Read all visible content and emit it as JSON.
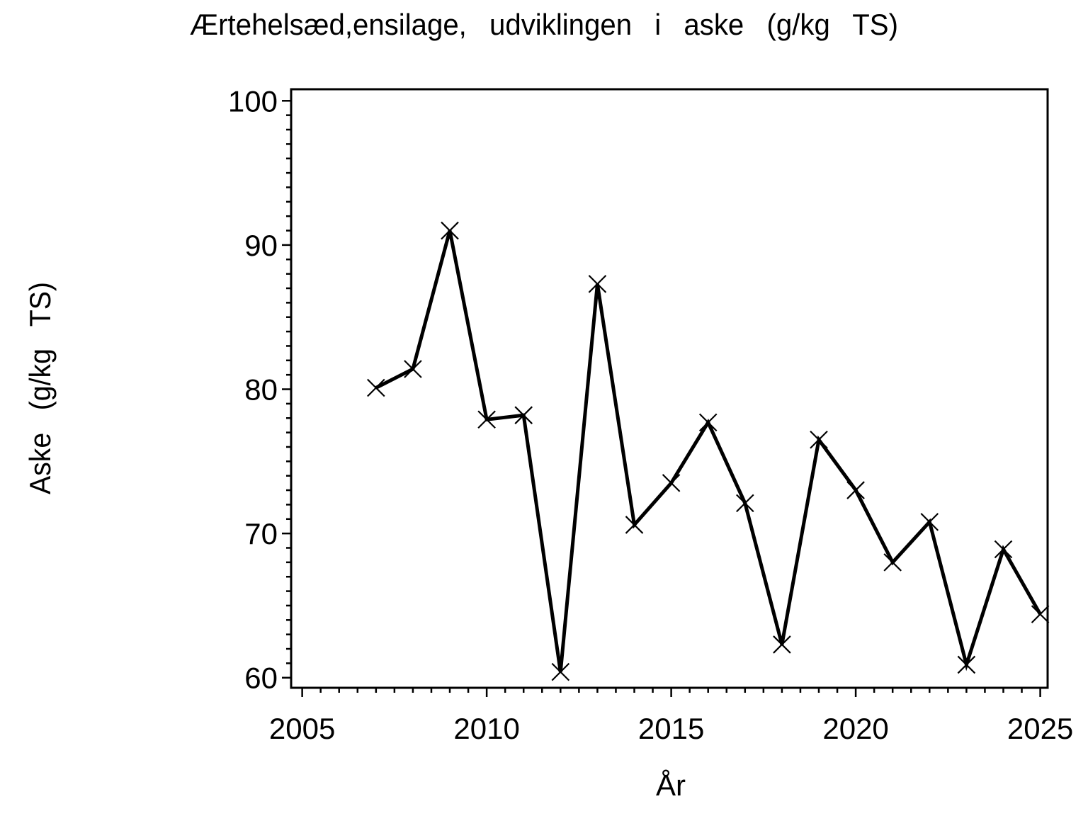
{
  "colors": {
    "foreground": "#000000",
    "background": "#ffffff"
  },
  "chart_data": {
    "type": "line",
    "title": "Ærtehelsæd,ensilage, udviklingen i aske (g/kg TS)",
    "xlabel": "År",
    "ylabel": "Aske (g/kg TS)",
    "x": [
      2007,
      2008,
      2009,
      2010,
      2011,
      2012,
      2013,
      2014,
      2015,
      2016,
      2017,
      2018,
      2019,
      2020,
      2021,
      2022,
      2023,
      2024,
      2025
    ],
    "y": [
      80.1,
      81.4,
      91.0,
      77.9,
      78.2,
      60.4,
      87.3,
      70.6,
      73.5,
      77.7,
      72.1,
      62.3,
      76.5,
      73.0,
      68.0,
      70.8,
      60.9,
      68.9,
      64.4
    ],
    "marker": "x",
    "line_color": "#000000",
    "marker_color": "#000000",
    "xlim": [
      2004.7,
      2025.2
    ],
    "ylim": [
      59.3,
      100.8
    ],
    "xticks_major": [
      2005,
      2010,
      2015,
      2020,
      2025
    ],
    "xtick_labels": [
      "2005",
      "2010",
      "2015",
      "2020",
      "2025"
    ],
    "x_minor_step": 0.5,
    "yticks_major": [
      60,
      70,
      80,
      90,
      100
    ],
    "ytick_labels": [
      "60",
      "70",
      "80",
      "90",
      "100"
    ],
    "y_minor_step": 1,
    "grid": false,
    "legend": "none",
    "frame": true
  }
}
